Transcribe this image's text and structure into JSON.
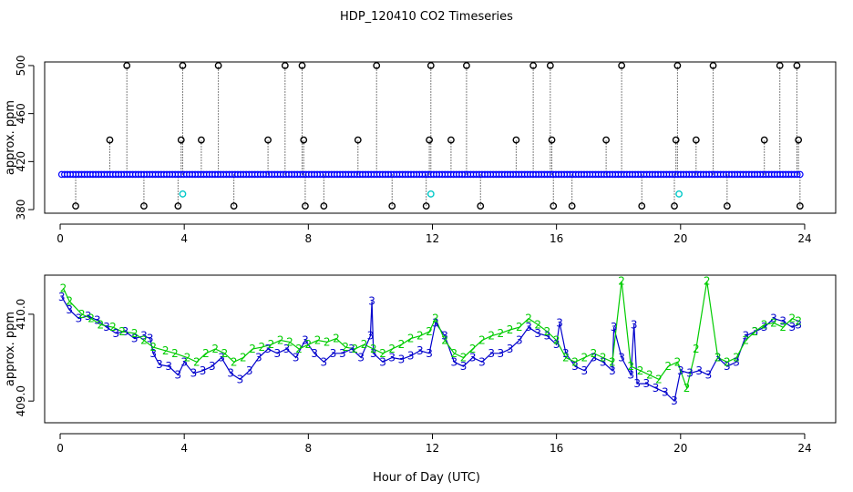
{
  "chart_data": {
    "title": "HDP_120410  CO2 Timeseries",
    "xlabel": "Hour of Day (UTC)",
    "panels": [
      {
        "type": "scatter",
        "ylabel": "approx. ppm",
        "xlim": [
          -0.5,
          25
        ],
        "ylim": [
          377,
          503
        ],
        "x_ticks": [
          0,
          4,
          8,
          12,
          16,
          20,
          24
        ],
        "y_ticks": [
          380,
          420,
          460,
          500
        ],
        "series": [
          {
            "name": "baseline (blue)",
            "color": "#0000ff",
            "hour_start": 0.05,
            "hour_end": 23.85,
            "level": 409.3
          },
          {
            "name": "spikes (black)",
            "color": "#000000",
            "points": [
              [
                0.5,
                383
              ],
              [
                1.6,
                438
              ],
              [
                2.15,
                500
              ],
              [
                2.7,
                383
              ],
              [
                3.8,
                383
              ],
              [
                3.9,
                438
              ],
              [
                3.95,
                500
              ],
              [
                4.55,
                438
              ],
              [
                5.1,
                500
              ],
              [
                5.6,
                383
              ],
              [
                6.7,
                438
              ],
              [
                7.25,
                500
              ],
              [
                7.8,
                500
              ],
              [
                7.85,
                438
              ],
              [
                7.9,
                383
              ],
              [
                8.5,
                383
              ],
              [
                9.6,
                438
              ],
              [
                10.2,
                500
              ],
              [
                10.7,
                383
              ],
              [
                11.9,
                438
              ],
              [
                11.95,
                500
              ],
              [
                11.8,
                383
              ],
              [
                12.6,
                438
              ],
              [
                13.1,
                500
              ],
              [
                13.55,
                383
              ],
              [
                14.7,
                438
              ],
              [
                15.25,
                500
              ],
              [
                15.8,
                500
              ],
              [
                15.85,
                438
              ],
              [
                15.9,
                383
              ],
              [
                16.5,
                383
              ],
              [
                17.6,
                438
              ],
              [
                18.1,
                500
              ],
              [
                18.75,
                383
              ],
              [
                19.8,
                383
              ],
              [
                19.85,
                438
              ],
              [
                19.9,
                500
              ],
              [
                20.5,
                438
              ],
              [
                21.05,
                500
              ],
              [
                21.5,
                383
              ],
              [
                22.7,
                438
              ],
              [
                23.2,
                500
              ],
              [
                23.75,
                500
              ],
              [
                23.8,
                438
              ],
              [
                23.85,
                383
              ]
            ]
          },
          {
            "name": "cyan",
            "color": "#00c8c8",
            "points": [
              [
                3.95,
                393
              ],
              [
                11.95,
                393
              ],
              [
                19.95,
                393
              ]
            ]
          }
        ]
      },
      {
        "type": "line",
        "ylabel": "approx. ppm",
        "xlim": [
          -0.5,
          25
        ],
        "ylim": [
          408.75,
          410.45
        ],
        "x_ticks": [
          0,
          4,
          8,
          12,
          16,
          20,
          24
        ],
        "y_ticks": [
          409.0,
          410.0
        ],
        "y_tick_labels": [
          "409.0",
          "410.0"
        ],
        "series": [
          {
            "name": "3",
            "label": "3",
            "color": "#0000cc",
            "points": [
              [
                0.05,
                410.2
              ],
              [
                0.3,
                410.05
              ],
              [
                0.6,
                409.95
              ],
              [
                0.9,
                409.98
              ],
              [
                1.2,
                409.93
              ],
              [
                1.5,
                409.85
              ],
              [
                1.8,
                409.78
              ],
              [
                2.1,
                409.8
              ],
              [
                2.4,
                409.72
              ],
              [
                2.7,
                409.75
              ],
              [
                2.9,
                409.72
              ],
              [
                3.0,
                409.55
              ],
              [
                3.2,
                409.42
              ],
              [
                3.5,
                409.4
              ],
              [
                3.8,
                409.3
              ],
              [
                4.0,
                409.45
              ],
              [
                4.3,
                409.32
              ],
              [
                4.6,
                409.35
              ],
              [
                4.9,
                409.4
              ],
              [
                5.2,
                409.5
              ],
              [
                5.5,
                409.32
              ],
              [
                5.8,
                409.25
              ],
              [
                6.1,
                409.35
              ],
              [
                6.4,
                409.5
              ],
              [
                6.7,
                409.6
              ],
              [
                7.0,
                409.55
              ],
              [
                7.3,
                409.6
              ],
              [
                7.6,
                409.5
              ],
              [
                7.9,
                409.7
              ],
              [
                8.2,
                409.55
              ],
              [
                8.5,
                409.45
              ],
              [
                8.8,
                409.55
              ],
              [
                9.1,
                409.55
              ],
              [
                9.4,
                409.6
              ],
              [
                9.7,
                409.5
              ],
              [
                10.0,
                409.75
              ],
              [
                10.05,
                410.15
              ],
              [
                10.1,
                409.55
              ],
              [
                10.4,
                409.45
              ],
              [
                10.7,
                409.5
              ],
              [
                11.0,
                409.48
              ],
              [
                11.3,
                409.52
              ],
              [
                11.6,
                409.58
              ],
              [
                11.9,
                409.55
              ],
              [
                12.1,
                409.9
              ],
              [
                12.4,
                409.75
              ],
              [
                12.7,
                409.45
              ],
              [
                13.0,
                409.4
              ],
              [
                13.3,
                409.5
              ],
              [
                13.6,
                409.45
              ],
              [
                13.9,
                409.55
              ],
              [
                14.2,
                409.55
              ],
              [
                14.5,
                409.6
              ],
              [
                14.8,
                409.7
              ],
              [
                15.1,
                409.85
              ],
              [
                15.4,
                409.78
              ],
              [
                15.7,
                409.75
              ],
              [
                16.0,
                409.65
              ],
              [
                16.1,
                409.9
              ],
              [
                16.3,
                409.55
              ],
              [
                16.6,
                409.4
              ],
              [
                16.9,
                409.35
              ],
              [
                17.2,
                409.5
              ],
              [
                17.5,
                409.45
              ],
              [
                17.8,
                409.35
              ],
              [
                17.85,
                409.85
              ],
              [
                18.1,
                409.5
              ],
              [
                18.4,
                409.3
              ],
              [
                18.5,
                409.88
              ],
              [
                18.6,
                409.2
              ],
              [
                18.9,
                409.2
              ],
              [
                19.2,
                409.15
              ],
              [
                19.5,
                409.1
              ],
              [
                19.8,
                409.0
              ],
              [
                20.0,
                409.35
              ],
              [
                20.3,
                409.32
              ],
              [
                20.6,
                409.35
              ],
              [
                20.9,
                409.3
              ],
              [
                21.2,
                409.5
              ],
              [
                21.5,
                409.4
              ],
              [
                21.8,
                409.45
              ],
              [
                22.1,
                409.75
              ],
              [
                22.4,
                409.8
              ],
              [
                22.7,
                409.85
              ],
              [
                23.0,
                409.95
              ],
              [
                23.3,
                409.92
              ],
              [
                23.6,
                409.85
              ],
              [
                23.8,
                409.88
              ]
            ]
          },
          {
            "name": "2",
            "label": "2",
            "color": "#00cc00",
            "points": [
              [
                0.1,
                410.3
              ],
              [
                0.3,
                410.15
              ],
              [
                0.7,
                410.0
              ],
              [
                1.0,
                409.95
              ],
              [
                1.3,
                409.88
              ],
              [
                1.7,
                409.85
              ],
              [
                2.0,
                409.8
              ],
              [
                2.4,
                409.78
              ],
              [
                2.7,
                409.7
              ],
              [
                3.0,
                409.62
              ],
              [
                3.4,
                409.58
              ],
              [
                3.7,
                409.55
              ],
              [
                4.1,
                409.5
              ],
              [
                4.4,
                409.45
              ],
              [
                4.7,
                409.55
              ],
              [
                5.0,
                409.6
              ],
              [
                5.3,
                409.55
              ],
              [
                5.6,
                409.45
              ],
              [
                5.9,
                409.5
              ],
              [
                6.2,
                409.6
              ],
              [
                6.5,
                409.62
              ],
              [
                6.8,
                409.65
              ],
              [
                7.1,
                409.7
              ],
              [
                7.4,
                409.68
              ],
              [
                7.7,
                409.6
              ],
              [
                8.0,
                409.65
              ],
              [
                8.3,
                409.7
              ],
              [
                8.6,
                409.68
              ],
              [
                8.9,
                409.72
              ],
              [
                9.2,
                409.62
              ],
              [
                9.5,
                409.6
              ],
              [
                9.8,
                409.65
              ],
              [
                10.1,
                409.6
              ],
              [
                10.4,
                409.55
              ],
              [
                10.7,
                409.6
              ],
              [
                11.0,
                409.65
              ],
              [
                11.3,
                409.72
              ],
              [
                11.6,
                409.75
              ],
              [
                11.9,
                409.8
              ],
              [
                12.1,
                409.95
              ],
              [
                12.4,
                409.7
              ],
              [
                12.7,
                409.55
              ],
              [
                13.0,
                409.5
              ],
              [
                13.3,
                409.6
              ],
              [
                13.6,
                409.7
              ],
              [
                13.9,
                409.75
              ],
              [
                14.2,
                409.78
              ],
              [
                14.5,
                409.82
              ],
              [
                14.8,
                409.85
              ],
              [
                15.1,
                409.95
              ],
              [
                15.4,
                409.88
              ],
              [
                15.7,
                409.8
              ],
              [
                16.0,
                409.7
              ],
              [
                16.3,
                409.5
              ],
              [
                16.6,
                409.45
              ],
              [
                16.9,
                409.5
              ],
              [
                17.2,
                409.55
              ],
              [
                17.5,
                409.5
              ],
              [
                17.8,
                409.45
              ],
              [
                18.1,
                410.38
              ],
              [
                18.4,
                409.4
              ],
              [
                18.7,
                409.35
              ],
              [
                19.0,
                409.3
              ],
              [
                19.3,
                409.25
              ],
              [
                19.6,
                409.4
              ],
              [
                19.9,
                409.45
              ],
              [
                20.2,
                409.15
              ],
              [
                20.5,
                409.6
              ],
              [
                20.85,
                410.38
              ],
              [
                21.2,
                409.5
              ],
              [
                21.5,
                409.45
              ],
              [
                21.8,
                409.5
              ],
              [
                22.1,
                409.7
              ],
              [
                22.4,
                409.8
              ],
              [
                22.7,
                409.88
              ],
              [
                23.0,
                409.9
              ],
              [
                23.3,
                409.85
              ],
              [
                23.6,
                409.95
              ],
              [
                23.8,
                409.92
              ]
            ]
          }
        ]
      }
    ]
  }
}
